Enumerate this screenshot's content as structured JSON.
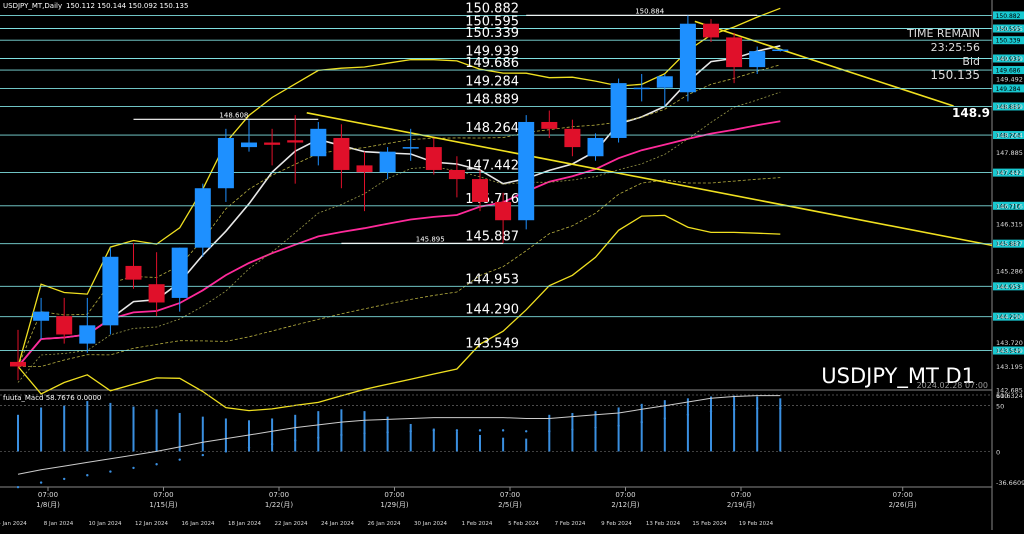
{
  "header": {
    "symbol": "USDJPY_MT,Daily",
    "ohlc": "150.112 150.144 150.092 150.135"
  },
  "info": {
    "time_remain_label": "TIME REMAIN",
    "time_remain_value": "23:25:56",
    "bid_label": "Bid",
    "bid_value": "150.135",
    "edge_label": "148.9",
    "watermark": "USDJPY_MT D1",
    "watermark_date": "2024.02.28 07:00"
  },
  "price_axis": {
    "min": 142.685,
    "max": 151.0,
    "ticks": [
      "150.595",
      "149.939",
      "149.492",
      "148.889",
      "148.264",
      "147.885",
      "147.442",
      "146.716",
      "146.315",
      "145.887",
      "145.286",
      "144.953",
      "144.290",
      "143.720",
      "143.549",
      "143.195",
      "142.685"
    ]
  },
  "markers": [
    {
      "label": "148.608",
      "price": 148.608,
      "from": 5,
      "to": 13
    },
    {
      "label": "150.884",
      "price": 150.884,
      "from": 22,
      "to": 32
    },
    {
      "label": "145.895",
      "price": 145.895,
      "from": 14,
      "to": 21
    }
  ],
  "levels": [
    {
      "label": "150.882",
      "price": 150.882,
      "badge": "150.882"
    },
    {
      "label": "150.595",
      "price": 150.595,
      "badge": "150.595"
    },
    {
      "label": "150.339",
      "price": 150.339,
      "badge": "150.339"
    },
    {
      "label": "149.939",
      "price": 149.939,
      "badge": "149.939"
    },
    {
      "label": "149.686",
      "price": 149.686,
      "badge": "149.686"
    },
    {
      "label": "149.284",
      "price": 149.284,
      "badge": "149.284"
    },
    {
      "label": "148.889",
      "price": 148.889,
      "badge": "148.889"
    },
    {
      "label": "148.264",
      "price": 148.264,
      "badge": "148.264"
    },
    {
      "label": "147.442",
      "price": 147.442,
      "badge": "147.442"
    },
    {
      "label": "146.716",
      "price": 146.716,
      "badge": "146.716"
    },
    {
      "label": "145.887",
      "price": 145.887,
      "badge": "145.887"
    },
    {
      "label": "144.953",
      "price": 144.953,
      "badge": "144.953"
    },
    {
      "label": "144.290",
      "price": 144.29,
      "badge": "144.290"
    },
    {
      "label": "143.549",
      "price": 143.549,
      "badge": "143.549"
    }
  ],
  "candles": [
    {
      "o": 143.3,
      "h": 144.0,
      "l": 142.9,
      "c": 143.2
    },
    {
      "o": 144.2,
      "h": 144.7,
      "l": 143.8,
      "c": 144.4
    },
    {
      "o": 144.3,
      "h": 144.7,
      "l": 143.7,
      "c": 143.9
    },
    {
      "o": 143.7,
      "h": 144.7,
      "l": 143.5,
      "c": 144.1
    },
    {
      "o": 144.1,
      "h": 145.8,
      "l": 143.9,
      "c": 145.6
    },
    {
      "o": 145.4,
      "h": 145.9,
      "l": 144.9,
      "c": 145.1
    },
    {
      "o": 145.0,
      "h": 145.7,
      "l": 144.3,
      "c": 144.6
    },
    {
      "o": 144.7,
      "h": 145.8,
      "l": 144.4,
      "c": 145.8
    },
    {
      "o": 145.8,
      "h": 147.2,
      "l": 145.6,
      "c": 147.1
    },
    {
      "o": 147.1,
      "h": 148.4,
      "l": 146.8,
      "c": 148.2
    },
    {
      "o": 148.0,
      "h": 148.6,
      "l": 147.9,
      "c": 148.1
    },
    {
      "o": 148.1,
      "h": 148.4,
      "l": 147.6,
      "c": 148.05
    },
    {
      "o": 148.15,
      "h": 148.7,
      "l": 147.2,
      "c": 148.1
    },
    {
      "o": 147.8,
      "h": 148.55,
      "l": 147.6,
      "c": 148.4
    },
    {
      "o": 148.2,
      "h": 148.5,
      "l": 147.1,
      "c": 147.5
    },
    {
      "o": 147.6,
      "h": 147.9,
      "l": 146.6,
      "c": 147.45
    },
    {
      "o": 147.45,
      "h": 148.0,
      "l": 147.3,
      "c": 147.9
    },
    {
      "o": 148.0,
      "h": 148.4,
      "l": 147.7,
      "c": 148.0
    },
    {
      "o": 148.0,
      "h": 148.2,
      "l": 147.4,
      "c": 147.5
    },
    {
      "o": 147.5,
      "h": 147.8,
      "l": 146.9,
      "c": 147.3
    },
    {
      "o": 147.3,
      "h": 147.5,
      "l": 146.6,
      "c": 146.8
    },
    {
      "o": 146.8,
      "h": 147.0,
      "l": 145.9,
      "c": 146.4
    },
    {
      "o": 146.4,
      "h": 148.7,
      "l": 146.2,
      "c": 148.55
    },
    {
      "o": 148.55,
      "h": 148.8,
      "l": 148.2,
      "c": 148.4
    },
    {
      "o": 148.4,
      "h": 148.6,
      "l": 147.8,
      "c": 148.0
    },
    {
      "o": 147.8,
      "h": 148.3,
      "l": 147.7,
      "c": 148.2
    },
    {
      "o": 148.2,
      "h": 149.5,
      "l": 148.1,
      "c": 149.4
    },
    {
      "o": 149.3,
      "h": 149.6,
      "l": 149.0,
      "c": 149.3
    },
    {
      "o": 149.3,
      "h": 149.6,
      "l": 148.9,
      "c": 149.55
    },
    {
      "o": 149.2,
      "h": 150.88,
      "l": 149.0,
      "c": 150.7
    },
    {
      "o": 150.7,
      "h": 150.8,
      "l": 150.3,
      "c": 150.4
    },
    {
      "o": 150.4,
      "h": 150.5,
      "l": 149.4,
      "c": 149.75
    },
    {
      "o": 149.75,
      "h": 150.2,
      "l": 149.6,
      "c": 150.1
    },
    {
      "o": 150.112,
      "h": 150.144,
      "l": 150.092,
      "c": 150.135
    }
  ],
  "macd": {
    "label": "fuuta_Macd 58.7676 0.0000",
    "axis_max": "61.6324",
    "axis_min": "-36.6609",
    "level_100": "100",
    "level_50": "50",
    "level_0": "0",
    "hist": [
      40,
      48,
      50,
      55,
      53,
      49,
      46,
      42,
      38,
      36,
      34,
      36,
      40,
      44,
      46,
      44,
      38,
      30,
      25,
      22,
      18,
      15,
      14,
      40,
      42,
      44,
      48,
      52,
      56,
      58,
      60,
      61,
      60,
      58
    ],
    "signal": [
      -25,
      -20,
      -16,
      -12,
      -8,
      -4,
      0,
      5,
      10,
      14,
      18,
      22,
      26,
      29,
      32,
      34,
      35,
      36,
      37,
      37,
      37,
      37,
      36,
      36,
      38,
      40,
      42,
      46,
      50,
      54,
      58,
      60,
      61,
      61
    ]
  },
  "x_axis": {
    "top_labels": [
      {
        "idx": 0,
        "time": "07:00",
        "date": "1/8(月)"
      },
      {
        "idx": 5,
        "time": "07:00",
        "date": "1/15(月)"
      },
      {
        "idx": 10,
        "time": "07:00",
        "date": "1/22(月)"
      },
      {
        "idx": 15,
        "time": "07:00",
        "date": "1/29(月)"
      },
      {
        "idx": 20,
        "time": "07:00",
        "date": "2/5(月)"
      },
      {
        "idx": 25,
        "time": "07:00",
        "date": "2/12(月)"
      },
      {
        "idx": 30,
        "time": "07:00",
        "date": "2/19(月)"
      },
      {
        "idx": 37,
        "time": "07:00",
        "date": "2/26(月)"
      }
    ],
    "bottom_labels": [
      {
        "pos": 0,
        "text": "4 Jan 2024"
      },
      {
        "pos": 1,
        "text": "8 Jan 2024"
      },
      {
        "pos": 2,
        "text": "10 Jan 2024"
      },
      {
        "pos": 3,
        "text": "12 Jan 2024"
      },
      {
        "pos": 4,
        "text": "16 Jan 2024"
      },
      {
        "pos": 5,
        "text": "18 Jan 2024"
      },
      {
        "pos": 6,
        "text": "22 Jan 2024"
      },
      {
        "pos": 7,
        "text": "24 Jan 2024"
      },
      {
        "pos": 8,
        "text": "26 Jan 2024"
      },
      {
        "pos": 9,
        "text": "30 Jan 2024"
      },
      {
        "pos": 10,
        "text": "1 Feb 2024"
      },
      {
        "pos": 11,
        "text": "5 Feb 2024"
      },
      {
        "pos": 12,
        "text": "7 Feb 2024"
      },
      {
        "pos": 13,
        "text": "9 Feb 2024"
      },
      {
        "pos": 14,
        "text": "13 Feb 2024"
      },
      {
        "pos": 15,
        "text": "15 Feb 2024"
      },
      {
        "pos": 16,
        "text": "19 Feb 2024"
      }
    ]
  },
  "colors": {
    "bull": "#1e90ff",
    "bear": "#e0102a",
    "level_line": "#7fdfe0",
    "yellow": "#f0e020",
    "magenta": "#ff2a9a",
    "white_ma": "#e8e8e8",
    "grid": "#444444"
  }
}
